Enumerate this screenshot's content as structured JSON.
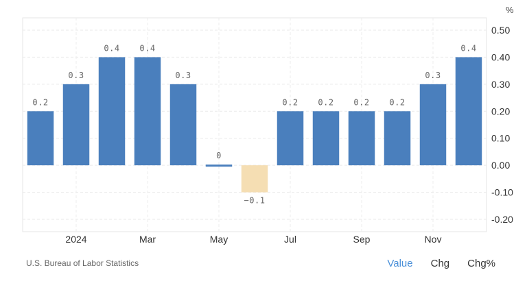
{
  "chart_data": {
    "type": "bar",
    "unit": "%",
    "x_tick_labels": [
      "2024",
      "Mar",
      "May",
      "Jul",
      "Sep",
      "Nov"
    ],
    "values": [
      0.2,
      0.3,
      0.4,
      0.4,
      0.3,
      0.0,
      -0.1,
      0.2,
      0.2,
      0.2,
      0.2,
      0.3,
      0.4
    ],
    "data_labels": [
      "0.2",
      "0.3",
      "0.4",
      "0.4",
      "0.3",
      "0",
      "−0.1",
      "0.2",
      "0.2",
      "0.2",
      "0.2",
      "0.3",
      "0.4"
    ],
    "y_ticks": [
      "0.50",
      "0.40",
      "0.30",
      "0.20",
      "0.10",
      "0.00",
      "-0.10",
      "-0.20"
    ],
    "ylim": [
      -0.2,
      0.5
    ],
    "colors": {
      "positive": "#4a7fbd",
      "negative": "#f5deb3"
    },
    "grid": true
  },
  "footer": {
    "source": "U.S. Bureau of Labor Statistics",
    "toggles": [
      "Value",
      "Chg",
      "Chg%"
    ],
    "active_toggle": "Value"
  }
}
